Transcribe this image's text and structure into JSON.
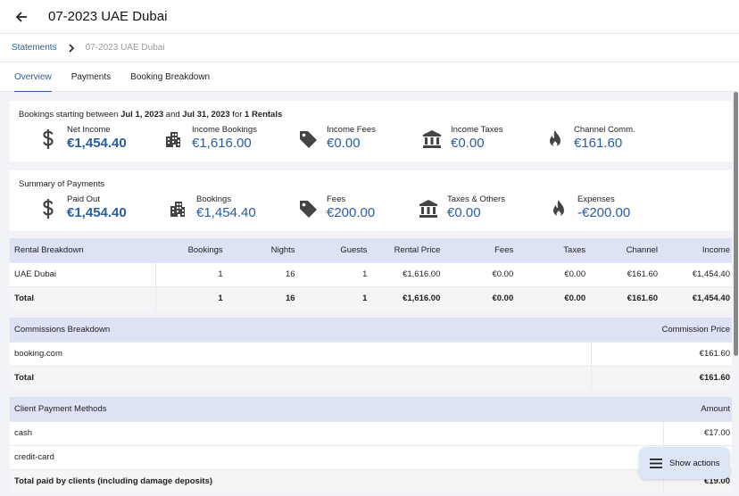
{
  "header": {
    "title": "07-2023 UAE Dubai"
  },
  "breadcrumb": {
    "link": "Statements",
    "current": "07-2023 UAE Dubai"
  },
  "tabs": [
    {
      "label": "Overview",
      "active": true
    },
    {
      "label": "Payments",
      "active": false
    },
    {
      "label": "Booking Breakdown",
      "active": false
    }
  ],
  "summary_bookings": {
    "prefix": "Bookings starting between ",
    "start": "Jul 1, 2023",
    "and": " and ",
    "end": "Jul 31, 2023",
    "for": " for ",
    "rentals": "1 Rentals",
    "stats": [
      {
        "label": "Net Income",
        "value": "€1,454.40",
        "icon": "dollar-icon"
      },
      {
        "label": "Income Bookings",
        "value": "€1,616.00",
        "icon": "building-icon"
      },
      {
        "label": "Income Fees",
        "value": "€0.00",
        "icon": "tag-icon"
      },
      {
        "label": "Income Taxes",
        "value": "€0.00",
        "icon": "bank-icon"
      },
      {
        "label": "Channel Comm.",
        "value": "€161.60",
        "icon": "flame-icon"
      }
    ]
  },
  "summary_payments": {
    "title": "Summary of Payments",
    "stats": [
      {
        "label": "Paid Out",
        "value": "€1,454.40",
        "icon": "dollar-icon"
      },
      {
        "label": "Bookings",
        "value": "€1,454.40",
        "icon": "building-icon"
      },
      {
        "label": "Fees",
        "value": "€200.00",
        "icon": "tag-icon"
      },
      {
        "label": "Taxes & Others",
        "value": "€0.00",
        "icon": "bank-icon"
      },
      {
        "label": "Expenses",
        "value": "-€200.00",
        "icon": "flame-icon"
      }
    ]
  },
  "rental_breakdown": {
    "headers": [
      "Rental Breakdown",
      "Bookings",
      "Nights",
      "Guests",
      "Rental Price",
      "Fees",
      "Taxes",
      "Channel",
      "Income"
    ],
    "rows": [
      [
        "UAE Dubai",
        "1",
        "16",
        "1",
        "€1,616.00",
        "€0.00",
        "€0.00",
        "€161.60",
        "€1,454.40"
      ]
    ],
    "total": [
      "Total",
      "1",
      "16",
      "1",
      "€1,616.00",
      "€0.00",
      "€0.00",
      "€161.60",
      "€1,454.40"
    ]
  },
  "commissions": {
    "headers": [
      "Commissions Breakdown",
      "Commission Price"
    ],
    "rows": [
      [
        "booking.com",
        "€161.60"
      ]
    ],
    "total": [
      "Total",
      "€161.60"
    ]
  },
  "payment_methods": {
    "headers": [
      "Client Payment Methods",
      "Amount"
    ],
    "rows": [
      [
        "cash",
        "€17.00"
      ],
      [
        "credit-card",
        ""
      ]
    ],
    "total": [
      "Total paid by clients (including damage deposits)",
      "€19.00"
    ]
  },
  "fab": {
    "label": "Show actions"
  },
  "colors": {
    "accent": "#2a5d9e",
    "table_header": "#dde2f5"
  }
}
